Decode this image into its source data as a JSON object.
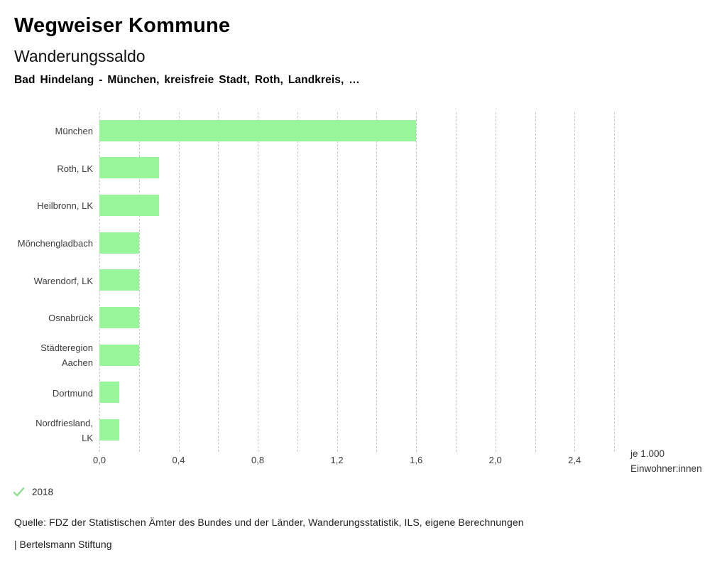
{
  "header": {
    "title": "Wegweiser Kommune",
    "subtitle": "Wanderungssaldo",
    "selection": "Bad Hindelang - München, kreisfreie Stadt, Roth, Landkreis, …"
  },
  "chart_data": {
    "type": "bar",
    "orientation": "horizontal",
    "title": "Wanderungssaldo",
    "categories": [
      "München",
      "Roth, LK",
      "Heilbronn, LK",
      "Mönchengladbach",
      "Warendorf, LK",
      "Osnabrück",
      "Städteregion Aachen",
      "Dortmund",
      "Nordfriesland, LK"
    ],
    "label_lines": [
      [
        "München"
      ],
      [
        "Roth, LK"
      ],
      [
        "Heilbronn, LK"
      ],
      [
        "Mönchengladbach"
      ],
      [
        "Warendorf, LK"
      ],
      [
        "Osnabrück"
      ],
      [
        "Städteregion",
        "Aachen"
      ],
      [
        "Dortmund"
      ],
      [
        "Nordfriesland,",
        "LK"
      ]
    ],
    "values": [
      1.6,
      0.3,
      0.3,
      0.2,
      0.2,
      0.2,
      0.2,
      0.1,
      0.1
    ],
    "series_name": "2018",
    "xlabel": "je 1.000 Einwohner:innen",
    "unit_lines": [
      "je 1.000",
      "Einwohner:innen"
    ],
    "xlim": [
      0,
      2.6
    ],
    "grid_step": 0.2,
    "grid_style": "dashed-vertical",
    "xticks": [
      0.0,
      0.4,
      0.8,
      1.2,
      1.6,
      2.0,
      2.4
    ],
    "xtick_labels": [
      "0,0",
      "0,4",
      "0,8",
      "1,2",
      "1,6",
      "2,0",
      "2,4"
    ],
    "bar_color": "#98f59a",
    "legend_position": "bottom-left"
  },
  "legend": {
    "check_color": "#8fdf8f"
  },
  "footer": {
    "source": "Quelle: FDZ der Statistischen Ämter des Bundes und der Länder, Wanderungsstatistik, ILS, eigene Berechnungen",
    "attribution": "| Bertelsmann Stiftung"
  },
  "colors": {
    "bar": "#98f59a",
    "grid": "#c9c9c9",
    "label": "#3c3c3c"
  }
}
